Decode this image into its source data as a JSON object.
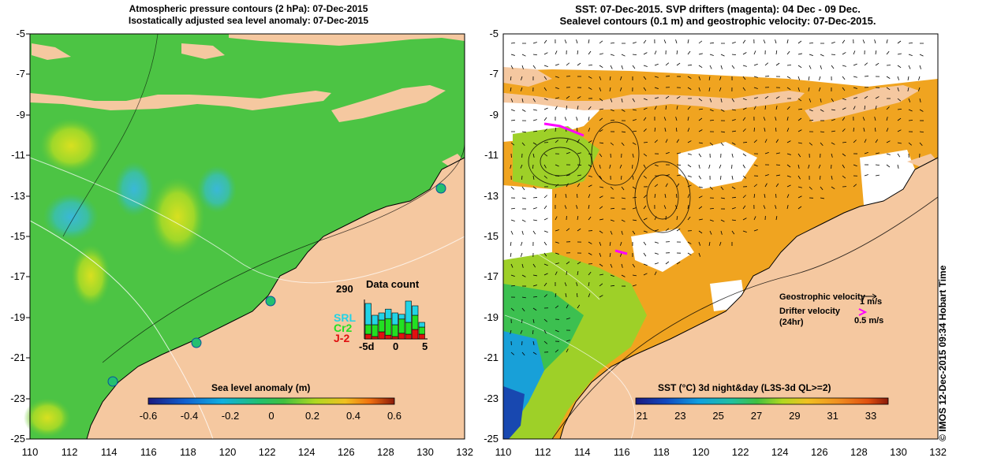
{
  "left_panel": {
    "title_line1": "Atmospheric pressure contours (2 hPa): 07-Dec-2015",
    "title_line2": "Isostatically adjusted sea level anomaly: 07-Dec-2015",
    "colorbar_label": "Sea level anomaly (m)",
    "colorbar_ticks": [
      "-0.6",
      "-0.4",
      "-0.2",
      "0",
      "0.2",
      "0.4",
      "0.6"
    ],
    "x_ticks": [
      "110",
      "112",
      "114",
      "116",
      "118",
      "120",
      "122",
      "124",
      "126",
      "128",
      "130",
      "132"
    ],
    "y_ticks": [
      "-5",
      "-7",
      "-9",
      "-11",
      "-13",
      "-15",
      "-17",
      "-19",
      "-21",
      "-23",
      "-25"
    ],
    "data_count": {
      "title": "Data count",
      "max_label": "290",
      "x_ticks": [
        "-5d",
        "0",
        "5"
      ],
      "legend": [
        {
          "name": "SRL",
          "color": "#22d3e6"
        },
        {
          "name": "Cr2",
          "color": "#22e022"
        },
        {
          "name": "J-2",
          "color": "#e01010"
        }
      ],
      "bars": [
        {
          "srl": 0.45,
          "cr2": 0.2,
          "j2": 0.1
        },
        {
          "srl": 0.2,
          "cr2": 0.25,
          "j2": 0.05
        },
        {
          "srl": 0.15,
          "cr2": 0.25,
          "j2": 0.15
        },
        {
          "srl": 0.2,
          "cr2": 0.35,
          "j2": 0.08
        },
        {
          "srl": 0.25,
          "cr2": 0.25,
          "j2": 0.05
        },
        {
          "srl": 0.1,
          "cr2": 0.3,
          "j2": 0.12
        },
        {
          "srl": 0.45,
          "cr2": 0.25,
          "j2": 0.1
        },
        {
          "srl": 0.2,
          "cr2": 0.3,
          "j2": 0.2
        },
        {
          "srl": 0.1,
          "cr2": 0.15,
          "j2": 0.1
        }
      ]
    }
  },
  "right_panel": {
    "title_line1": "SST: 07-Dec-2015. SVP drifters (magenta): 04 Dec - 09 Dec.",
    "title_line2": "Sealevel contours (0.1 m) and geostrophic velocity: 07-Dec-2015.",
    "colorbar_label": "SST (°C) 3d night&day (L3S-3d QL>=2)",
    "colorbar_ticks": [
      "21",
      "23",
      "25",
      "27",
      "29",
      "31",
      "33"
    ],
    "x_ticks": [
      "110",
      "112",
      "114",
      "116",
      "118",
      "120",
      "122",
      "124",
      "126",
      "128",
      "130",
      "132"
    ],
    "y_ticks": [
      "-5",
      "-7",
      "-9",
      "-11",
      "-13",
      "-15",
      "-17",
      "-19",
      "-21",
      "-23",
      "-25"
    ],
    "legend": {
      "geo_label": "Geostrophic velocity",
      "geo_scale": "1 m/s",
      "drifter_label": "Drifter velocity",
      "drifter_sub": "(24hr)",
      "drifter_scale": "0.5 m/s"
    }
  },
  "copyright": "© IMOS 12-Dec-2015 09:34 Hobart Time",
  "colors": {
    "land": "#f5c8a0",
    "sea_green": "#3cc24a",
    "sst_orange": "#f0a020",
    "drifter": "#ff00ff"
  }
}
